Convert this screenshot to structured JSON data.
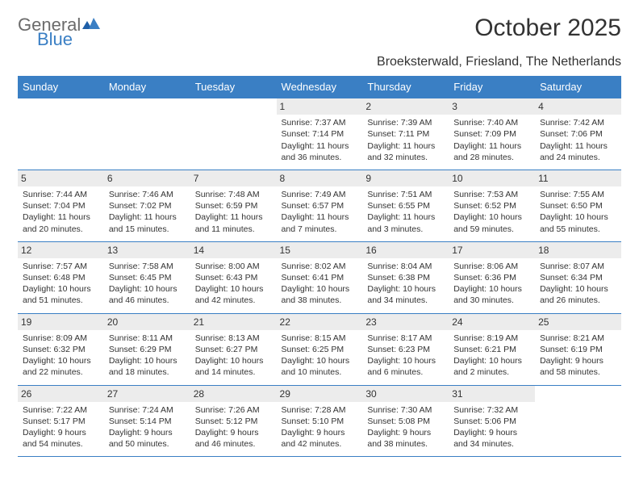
{
  "brand": {
    "part1": "General",
    "part2": "Blue"
  },
  "title": "October 2025",
  "location": "Broeksterwald, Friesland, The Netherlands",
  "colors": {
    "header_bg": "#3a7fc4",
    "header_text": "#ffffff",
    "daynum_bg": "#ececec",
    "rule": "#3a7fc4",
    "text": "#333333",
    "logo_gray": "#6b6b6b",
    "logo_blue": "#3a7fc4",
    "page_bg": "#ffffff"
  },
  "typography": {
    "title_fontsize": 30,
    "location_fontsize": 16,
    "weekday_fontsize": 13,
    "daynum_fontsize": 12,
    "cell_fontsize": 10.5
  },
  "weekdays": [
    "Sunday",
    "Monday",
    "Tuesday",
    "Wednesday",
    "Thursday",
    "Friday",
    "Saturday"
  ],
  "weeks": [
    [
      {
        "day": "",
        "sunrise": "",
        "sunset": "",
        "daylight": ""
      },
      {
        "day": "",
        "sunrise": "",
        "sunset": "",
        "daylight": ""
      },
      {
        "day": "",
        "sunrise": "",
        "sunset": "",
        "daylight": ""
      },
      {
        "day": "1",
        "sunrise": "Sunrise: 7:37 AM",
        "sunset": "Sunset: 7:14 PM",
        "daylight": "Daylight: 11 hours and 36 minutes."
      },
      {
        "day": "2",
        "sunrise": "Sunrise: 7:39 AM",
        "sunset": "Sunset: 7:11 PM",
        "daylight": "Daylight: 11 hours and 32 minutes."
      },
      {
        "day": "3",
        "sunrise": "Sunrise: 7:40 AM",
        "sunset": "Sunset: 7:09 PM",
        "daylight": "Daylight: 11 hours and 28 minutes."
      },
      {
        "day": "4",
        "sunrise": "Sunrise: 7:42 AM",
        "sunset": "Sunset: 7:06 PM",
        "daylight": "Daylight: 11 hours and 24 minutes."
      }
    ],
    [
      {
        "day": "5",
        "sunrise": "Sunrise: 7:44 AM",
        "sunset": "Sunset: 7:04 PM",
        "daylight": "Daylight: 11 hours and 20 minutes."
      },
      {
        "day": "6",
        "sunrise": "Sunrise: 7:46 AM",
        "sunset": "Sunset: 7:02 PM",
        "daylight": "Daylight: 11 hours and 15 minutes."
      },
      {
        "day": "7",
        "sunrise": "Sunrise: 7:48 AM",
        "sunset": "Sunset: 6:59 PM",
        "daylight": "Daylight: 11 hours and 11 minutes."
      },
      {
        "day": "8",
        "sunrise": "Sunrise: 7:49 AM",
        "sunset": "Sunset: 6:57 PM",
        "daylight": "Daylight: 11 hours and 7 minutes."
      },
      {
        "day": "9",
        "sunrise": "Sunrise: 7:51 AM",
        "sunset": "Sunset: 6:55 PM",
        "daylight": "Daylight: 11 hours and 3 minutes."
      },
      {
        "day": "10",
        "sunrise": "Sunrise: 7:53 AM",
        "sunset": "Sunset: 6:52 PM",
        "daylight": "Daylight: 10 hours and 59 minutes."
      },
      {
        "day": "11",
        "sunrise": "Sunrise: 7:55 AM",
        "sunset": "Sunset: 6:50 PM",
        "daylight": "Daylight: 10 hours and 55 minutes."
      }
    ],
    [
      {
        "day": "12",
        "sunrise": "Sunrise: 7:57 AM",
        "sunset": "Sunset: 6:48 PM",
        "daylight": "Daylight: 10 hours and 51 minutes."
      },
      {
        "day": "13",
        "sunrise": "Sunrise: 7:58 AM",
        "sunset": "Sunset: 6:45 PM",
        "daylight": "Daylight: 10 hours and 46 minutes."
      },
      {
        "day": "14",
        "sunrise": "Sunrise: 8:00 AM",
        "sunset": "Sunset: 6:43 PM",
        "daylight": "Daylight: 10 hours and 42 minutes."
      },
      {
        "day": "15",
        "sunrise": "Sunrise: 8:02 AM",
        "sunset": "Sunset: 6:41 PM",
        "daylight": "Daylight: 10 hours and 38 minutes."
      },
      {
        "day": "16",
        "sunrise": "Sunrise: 8:04 AM",
        "sunset": "Sunset: 6:38 PM",
        "daylight": "Daylight: 10 hours and 34 minutes."
      },
      {
        "day": "17",
        "sunrise": "Sunrise: 8:06 AM",
        "sunset": "Sunset: 6:36 PM",
        "daylight": "Daylight: 10 hours and 30 minutes."
      },
      {
        "day": "18",
        "sunrise": "Sunrise: 8:07 AM",
        "sunset": "Sunset: 6:34 PM",
        "daylight": "Daylight: 10 hours and 26 minutes."
      }
    ],
    [
      {
        "day": "19",
        "sunrise": "Sunrise: 8:09 AM",
        "sunset": "Sunset: 6:32 PM",
        "daylight": "Daylight: 10 hours and 22 minutes."
      },
      {
        "day": "20",
        "sunrise": "Sunrise: 8:11 AM",
        "sunset": "Sunset: 6:29 PM",
        "daylight": "Daylight: 10 hours and 18 minutes."
      },
      {
        "day": "21",
        "sunrise": "Sunrise: 8:13 AM",
        "sunset": "Sunset: 6:27 PM",
        "daylight": "Daylight: 10 hours and 14 minutes."
      },
      {
        "day": "22",
        "sunrise": "Sunrise: 8:15 AM",
        "sunset": "Sunset: 6:25 PM",
        "daylight": "Daylight: 10 hours and 10 minutes."
      },
      {
        "day": "23",
        "sunrise": "Sunrise: 8:17 AM",
        "sunset": "Sunset: 6:23 PM",
        "daylight": "Daylight: 10 hours and 6 minutes."
      },
      {
        "day": "24",
        "sunrise": "Sunrise: 8:19 AM",
        "sunset": "Sunset: 6:21 PM",
        "daylight": "Daylight: 10 hours and 2 minutes."
      },
      {
        "day": "25",
        "sunrise": "Sunrise: 8:21 AM",
        "sunset": "Sunset: 6:19 PM",
        "daylight": "Daylight: 9 hours and 58 minutes."
      }
    ],
    [
      {
        "day": "26",
        "sunrise": "Sunrise: 7:22 AM",
        "sunset": "Sunset: 5:17 PM",
        "daylight": "Daylight: 9 hours and 54 minutes."
      },
      {
        "day": "27",
        "sunrise": "Sunrise: 7:24 AM",
        "sunset": "Sunset: 5:14 PM",
        "daylight": "Daylight: 9 hours and 50 minutes."
      },
      {
        "day": "28",
        "sunrise": "Sunrise: 7:26 AM",
        "sunset": "Sunset: 5:12 PM",
        "daylight": "Daylight: 9 hours and 46 minutes."
      },
      {
        "day": "29",
        "sunrise": "Sunrise: 7:28 AM",
        "sunset": "Sunset: 5:10 PM",
        "daylight": "Daylight: 9 hours and 42 minutes."
      },
      {
        "day": "30",
        "sunrise": "Sunrise: 7:30 AM",
        "sunset": "Sunset: 5:08 PM",
        "daylight": "Daylight: 9 hours and 38 minutes."
      },
      {
        "day": "31",
        "sunrise": "Sunrise: 7:32 AM",
        "sunset": "Sunset: 5:06 PM",
        "daylight": "Daylight: 9 hours and 34 minutes."
      },
      {
        "day": "",
        "sunrise": "",
        "sunset": "",
        "daylight": ""
      }
    ]
  ]
}
